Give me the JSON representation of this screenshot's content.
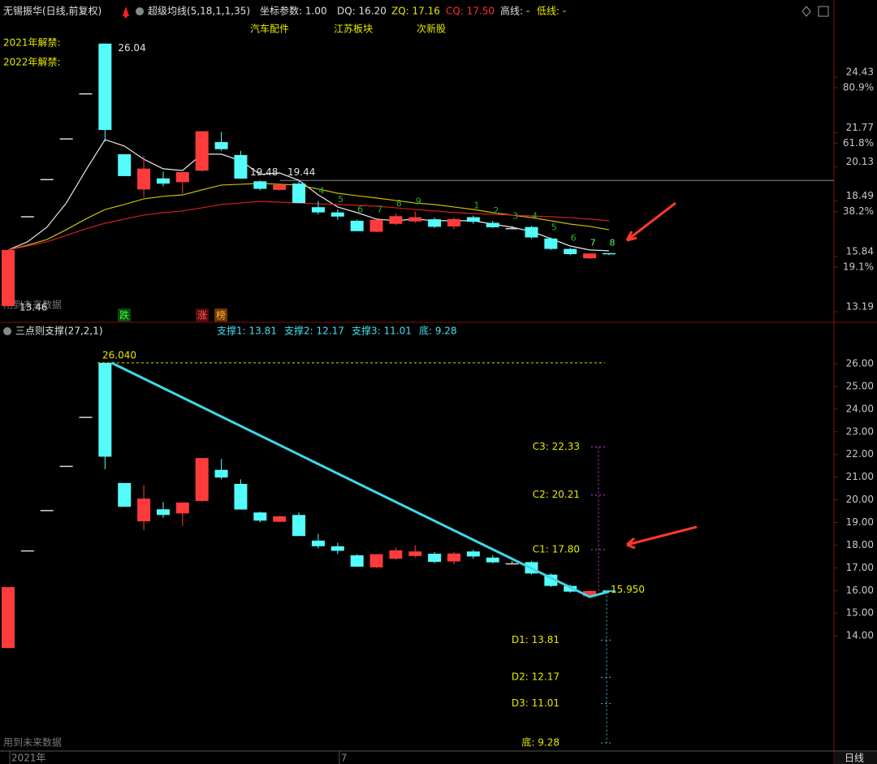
{
  "header": {
    "title": "无锡振华(日线,前复权)",
    "indicator": "超级均线(5,18,1,1,35)",
    "param": "坐标参数: 1.00",
    "dq": "DQ: 16.20",
    "zq": "ZQ: 17.16",
    "cq": "CQ: 17.50",
    "high_line": "高线: -",
    "low_line": "低线: -",
    "tags": [
      "汽车配件",
      "江苏板块",
      "次新股"
    ]
  },
  "notes": {
    "unlock_2021": "2021年解禁:",
    "unlock_2022": "2022年解禁:",
    "future_top": "用到未来数据",
    "future_bottom": "用到未来数据",
    "badges": [
      "跌",
      "涨",
      "榜"
    ],
    "period": "日线"
  },
  "chart_data": [
    {
      "type": "candlestick",
      "open": [
        13.46,
        17.77,
        19.55,
        21.5,
        23.66,
        26.04,
        20.74,
        19.05,
        19.58,
        19.4,
        19.95,
        21.32,
        20.7,
        19.44,
        19.03,
        19.33,
        18.2,
        17.95,
        17.55,
        17.02,
        17.4,
        17.52,
        17.62,
        17.28,
        17.72,
        17.45,
        17.2,
        17.25,
        16.7,
        16.2,
        15.75,
        16.0
      ],
      "high": [
        16.15,
        17.77,
        19.55,
        21.5,
        23.66,
        26.04,
        20.74,
        20.66,
        19.9,
        19.88,
        21.84,
        21.8,
        20.9,
        19.48,
        19.3,
        19.44,
        18.5,
        18.1,
        17.6,
        17.6,
        17.9,
        18.0,
        17.7,
        17.7,
        17.8,
        17.55,
        17.3,
        17.3,
        16.75,
        16.25,
        16.0,
        16.0
      ],
      "low": [
        13.46,
        17.77,
        19.55,
        21.5,
        23.66,
        21.35,
        19.69,
        18.66,
        19.2,
        18.85,
        19.9,
        20.9,
        19.57,
        19.0,
        19.0,
        18.4,
        17.85,
        17.6,
        17.05,
        17.0,
        17.35,
        17.45,
        17.2,
        17.15,
        17.4,
        17.2,
        17.15,
        16.7,
        16.15,
        15.9,
        15.72,
        15.9
      ],
      "close": [
        16.15,
        17.77,
        19.55,
        21.5,
        23.66,
        21.9,
        19.69,
        20.05,
        19.33,
        19.88,
        21.84,
        20.98,
        19.57,
        19.08,
        19.27,
        18.4,
        17.95,
        17.75,
        17.05,
        17.6,
        17.77,
        17.72,
        17.26,
        17.63,
        17.5,
        17.24,
        17.2,
        16.75,
        16.2,
        15.95,
        15.98,
        15.95
      ],
      "up_color": "#ff3b3b",
      "down_color": "#54fcfc",
      "flat_color": "#d8d8d8",
      "lines": [
        {
          "color": "#e8e8e8",
          "values": [
            16.15,
            16.54,
            17.24,
            18.4,
            19.96,
            21.44,
            21.13,
            20.5,
            20.04,
            19.96,
            20.74,
            20.74,
            20.43,
            19.77,
            19.84,
            19.49,
            18.79,
            18.21,
            17.94,
            17.63,
            17.55,
            17.63,
            17.55,
            17.55,
            17.55,
            17.39,
            17.24,
            17.04,
            16.69,
            16.34,
            16.15,
            16.11
          ]
        },
        {
          "color": "#c8c000",
          "values": [
            16.15,
            16.38,
            16.65,
            17.12,
            17.63,
            18.09,
            18.33,
            18.6,
            18.72,
            18.79,
            19.03,
            19.26,
            19.3,
            19.34,
            19.3,
            19.26,
            19.07,
            18.87,
            18.75,
            18.64,
            18.52,
            18.4,
            18.33,
            18.21,
            18.09,
            17.94,
            17.82,
            17.7,
            17.55,
            17.39,
            17.28,
            17.12
          ]
        },
        {
          "color": "#d02020",
          "values": [
            16.15,
            16.34,
            16.54,
            16.85,
            17.16,
            17.43,
            17.63,
            17.82,
            17.94,
            18.02,
            18.17,
            18.33,
            18.4,
            18.48,
            18.44,
            18.4,
            18.36,
            18.33,
            18.29,
            18.25,
            18.17,
            18.09,
            18.02,
            17.94,
            17.9,
            17.86,
            17.82,
            17.78,
            17.74,
            17.7,
            17.63,
            17.55
          ]
        }
      ],
      "td_counts": [
        null,
        null,
        null,
        null,
        null,
        null,
        null,
        null,
        null,
        null,
        null,
        null,
        null,
        null,
        null,
        null,
        4,
        5,
        6,
        7,
        8,
        9,
        null,
        null,
        1,
        2,
        3,
        4,
        5,
        6,
        7,
        8
      ],
      "high_label": 26.04,
      "low_label": 13.46,
      "ref_line": 19.48,
      "ref_label": 19.44,
      "ylim": [
        12.76,
        27.04
      ],
      "yticks": [
        13.19,
        15.84,
        18.49,
        20.13,
        21.77,
        24.43
      ],
      "y2lim": [
        0.64,
        103.27
      ],
      "y2ticks": [
        {
          "value": 19.1,
          "label": "19.1%"
        },
        {
          "value": 38.2,
          "label": "38.2%"
        },
        {
          "value": 61.8,
          "label": "61.8%"
        },
        {
          "value": 80.9,
          "label": "80.9%"
        }
      ]
    },
    {
      "type": "candlestick",
      "title": "三点则支撑(27,2,1)",
      "legend": [
        "支撑1: 13.81",
        "支撑2: 12.17",
        "支撑3: 11.01",
        "底: 9.28"
      ],
      "top_level": {
        "value": 26.04,
        "label": "26.040"
      },
      "end_level": {
        "value": 15.95,
        "label": "15.950"
      },
      "levels": [
        {
          "value": 22.33,
          "label": "C3: 22.33"
        },
        {
          "value": 20.21,
          "label": "C2: 20.21"
        },
        {
          "value": 17.8,
          "label": "C1: 17.80"
        }
      ],
      "supports": [
        {
          "value": 13.81,
          "label": "D1: 13.81"
        },
        {
          "value": 12.17,
          "label": "D2: 12.17"
        },
        {
          "value": 11.01,
          "label": "D3: 11.01"
        },
        {
          "value": 9.28,
          "label": "底: 9.28"
        }
      ],
      "trend_line": {
        "color": "#3fd8e8",
        "x": [
          5,
          30,
          31
        ],
        "values": [
          26.04,
          15.72,
          15.95
        ]
      },
      "categories": [
        "2021年",
        null,
        null,
        null,
        null,
        null,
        null,
        null,
        null,
        null,
        null,
        null,
        null,
        null,
        null,
        null,
        null,
        "7",
        null,
        null,
        null,
        null,
        null,
        null,
        null,
        null,
        null,
        null,
        null,
        null,
        null,
        null
      ],
      "ylim": [
        8.92,
        27.36
      ],
      "yticks": [
        {
          "value": 14,
          "label": "14.00"
        },
        {
          "value": 15,
          "label": "15.00"
        },
        {
          "value": 16,
          "label": "16.00"
        },
        {
          "value": 17,
          "label": "17.00"
        },
        {
          "value": 18,
          "label": "18.00"
        },
        {
          "value": 19,
          "label": "19.00"
        },
        {
          "value": 20,
          "label": "20.00"
        },
        {
          "value": 21,
          "label": "21.00"
        },
        {
          "value": 22,
          "label": "22.00"
        },
        {
          "value": 23,
          "label": "23.00"
        },
        {
          "value": 24,
          "label": "24.00"
        },
        {
          "value": 25,
          "label": "25.00"
        },
        {
          "value": 26,
          "label": "26.00"
        }
      ]
    }
  ]
}
